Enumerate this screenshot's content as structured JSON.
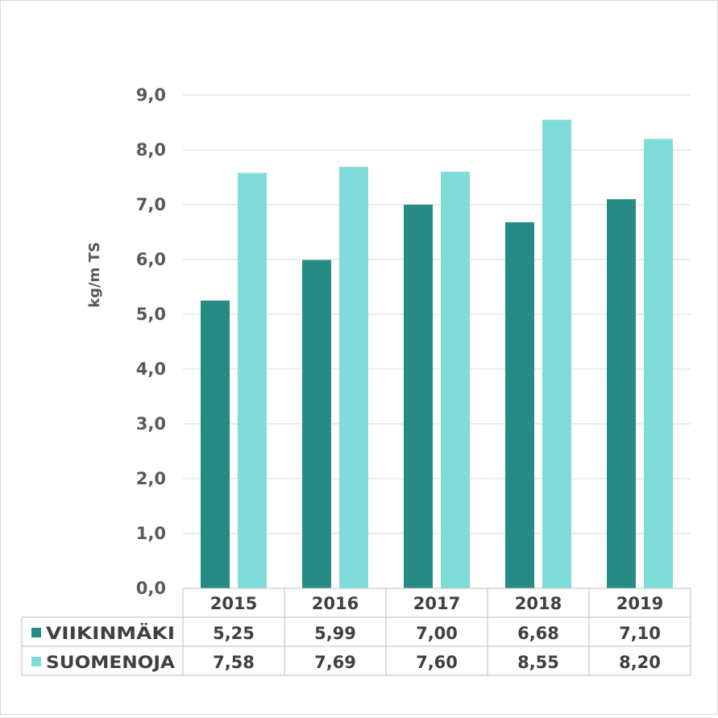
{
  "chart_data": {
    "type": "bar",
    "title": "",
    "xlabel": "",
    "ylabel": "kg/m TS",
    "ylim": [
      0,
      9
    ],
    "ytick_step": 1,
    "yticks": [
      "0,0",
      "1,0",
      "2,0",
      "3,0",
      "4,0",
      "5,0",
      "6,0",
      "7,0",
      "8,0",
      "9,0"
    ],
    "grid": true,
    "legend": "data-table",
    "categories": [
      "2015",
      "2016",
      "2017",
      "2018",
      "2019"
    ],
    "series": [
      {
        "name": "VIIKINMÄKI",
        "color": "#258B84",
        "values": [
          5.25,
          5.99,
          7.0,
          6.68,
          7.1
        ],
        "labels": [
          "5,25",
          "5,99",
          "7,00",
          "6,68",
          "7,10"
        ]
      },
      {
        "name": "SUOMENOJA",
        "color": "#7FDCD8",
        "values": [
          7.58,
          7.69,
          7.6,
          8.55,
          8.2
        ],
        "labels": [
          "7,58",
          "7,69",
          "7,60",
          "8,55",
          "8,20"
        ]
      }
    ]
  }
}
